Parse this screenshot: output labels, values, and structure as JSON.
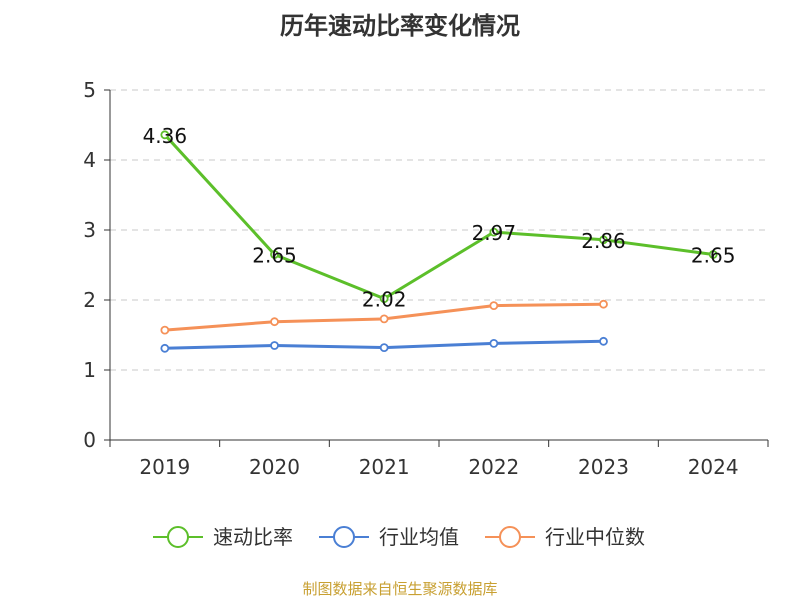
{
  "source_note": "制图数据来自恒生聚源数据库",
  "chart_data": {
    "type": "line",
    "title": "历年速动比率变化情况",
    "xlabel": "",
    "ylabel": "",
    "categories": [
      "2019",
      "2020",
      "2021",
      "2022",
      "2023",
      "2024"
    ],
    "ylim": [
      0,
      5
    ],
    "yticks": [
      0,
      1,
      2,
      3,
      4,
      5
    ],
    "grid": true,
    "legend_position": "bottom",
    "series": [
      {
        "name": "速动比率",
        "color": "#5cbf2a",
        "values": [
          4.36,
          2.65,
          2.02,
          2.97,
          2.86,
          2.65
        ],
        "data_labels": [
          "4.36",
          "2.65",
          "2.02",
          "2.97",
          "2.86",
          "2.65"
        ]
      },
      {
        "name": "行业均值",
        "color": "#4a7fd4",
        "values": [
          1.31,
          1.35,
          1.32,
          1.38,
          1.41,
          null
        ]
      },
      {
        "name": "行业中位数",
        "color": "#f59158",
        "values": [
          1.57,
          1.69,
          1.73,
          1.92,
          1.94,
          null
        ]
      }
    ]
  }
}
